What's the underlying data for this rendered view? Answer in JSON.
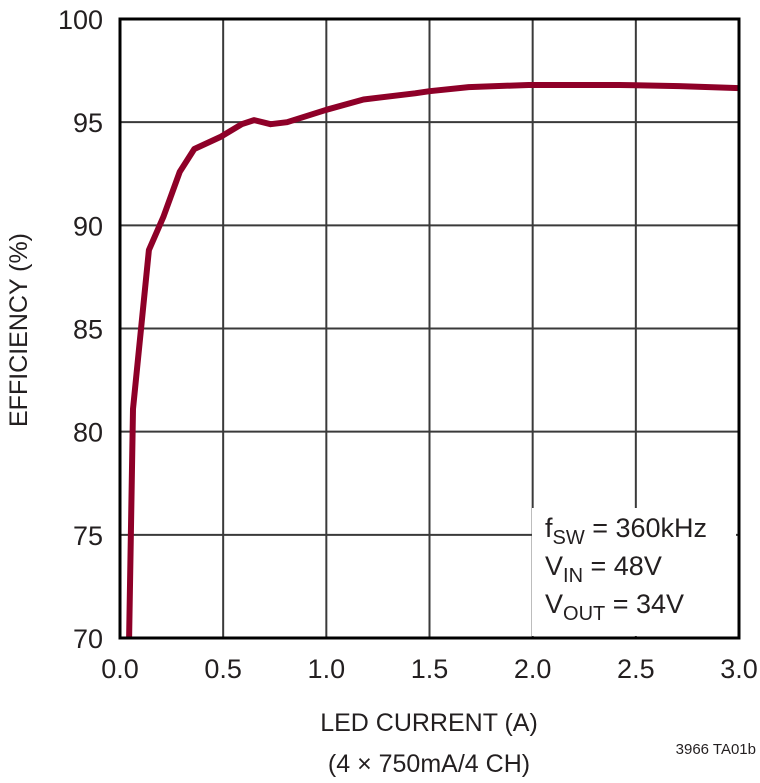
{
  "chart_data": {
    "type": "line",
    "title": "",
    "xlabel": "LED CURRENT (A)",
    "xlabel_line2": "(4 × 750mA/4 CH)",
    "ylabel": "EFFICIENCY (%)",
    "xlim": [
      0,
      3.0
    ],
    "ylim": [
      70,
      100
    ],
    "x_ticks": [
      "0.0",
      "0.5",
      "1.0",
      "1.5",
      "2.0",
      "2.5",
      "3.0"
    ],
    "y_ticks": [
      "70",
      "75",
      "80",
      "85",
      "90",
      "95",
      "100"
    ],
    "grid": true,
    "series": [
      {
        "name": "Efficiency",
        "color": "#8E0028",
        "x": [
          0.044,
          0.063,
          0.14,
          0.21,
          0.29,
          0.36,
          0.49,
          0.59,
          0.65,
          0.73,
          0.81,
          1.0,
          1.18,
          1.43,
          1.5,
          1.69,
          1.98,
          2.42,
          2.71,
          3.0
        ],
        "y": [
          70.0,
          81.1,
          88.8,
          90.4,
          92.6,
          93.7,
          94.3,
          94.9,
          95.1,
          94.9,
          95.0,
          95.6,
          96.1,
          96.4,
          96.5,
          96.7,
          96.8,
          96.8,
          96.75,
          96.65
        ]
      }
    ],
    "annotations": [
      {
        "main": "f",
        "sub": "SW",
        "rest": " = 360kHz"
      },
      {
        "main": "V",
        "sub": "IN",
        "rest": " = 48V"
      },
      {
        "main": "V",
        "sub": "OUT",
        "rest": " = 34V"
      }
    ],
    "figure_id": "3966 TA01b"
  },
  "colors": {
    "axis": "#000000",
    "grid": "#3a3a3a",
    "curve": "#8E0028"
  }
}
